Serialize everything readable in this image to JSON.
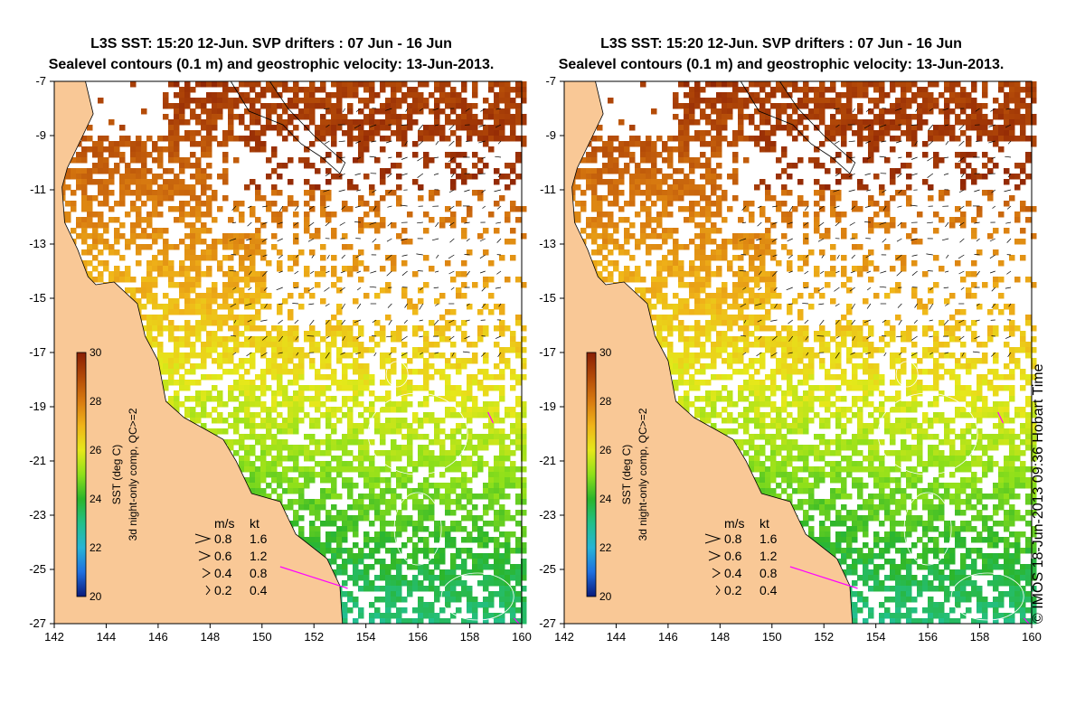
{
  "panels": [
    {
      "title_line1": "L3S SST: 15:20 12-Jun. SVP drifters : 07 Jun - 16 Jun",
      "title_line2": "Sealevel contours (0.1 m) and geostrophic velocity: 13-Jun-2013."
    },
    {
      "title_line1": "L3S SST: 15:20 12-Jun. SVP drifters : 07 Jun - 16 Jun",
      "title_line2": "Sealevel contours (0.1 m) and geostrophic velocity: 13-Jun-2013."
    }
  ],
  "axes": {
    "x_ticks": [
      "142",
      "144",
      "146",
      "148",
      "150",
      "152",
      "154",
      "156",
      "158",
      "160"
    ],
    "y_ticks": [
      "-7",
      "-9",
      "-11",
      "-13",
      "-15",
      "-17",
      "-19",
      "-21",
      "-23",
      "-25",
      "-27"
    ],
    "lon_range": [
      142,
      160
    ],
    "lat_range": [
      -27,
      -7
    ]
  },
  "colorbar": {
    "label_line1": "SST (deg C)",
    "label_line2": "3d night-only comp, QC>=2",
    "ticks": [
      "30",
      "28",
      "26",
      "24",
      "22",
      "20"
    ],
    "range": [
      20,
      30
    ],
    "colors": [
      "#0a1a7a",
      "#1f6fe0",
      "#27b4d6",
      "#22c08a",
      "#2bb52b",
      "#8fe01a",
      "#e6e81a",
      "#f0b419",
      "#d97b10",
      "#b34a08",
      "#8a1f04"
    ]
  },
  "speed_legend": {
    "header_ms": "m/s",
    "header_kt": "kt",
    "rows": [
      {
        "ms": "0.8",
        "kt": "1.6",
        "scale": 0.8
      },
      {
        "ms": "0.6",
        "kt": "1.2",
        "scale": 0.6
      },
      {
        "ms": "0.4",
        "kt": "0.8",
        "scale": 0.4
      },
      {
        "ms": "0.2",
        "kt": "0.4",
        "scale": 0.2
      }
    ]
  },
  "credit": "© IMOS 18-Jun-2013 09:36 Hobart Time",
  "colors": {
    "land": "#f9c896",
    "cloud": "#ffffff",
    "contour": "#ffffff",
    "arrow": "#000000",
    "drifter": "#ff00ff"
  }
}
